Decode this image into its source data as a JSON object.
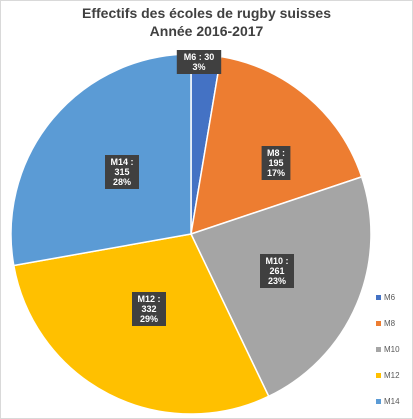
{
  "chart_data": {
    "type": "pie",
    "title": [
      "Effectifs des écoles de rugby suisses",
      "Année 2016-2017"
    ],
    "series_name": "Effectifs",
    "slices": [
      {
        "name": "M6",
        "value": 30,
        "percent": "3%",
        "color": "#4472c4",
        "label": [
          "M6 : 30",
          "3%"
        ]
      },
      {
        "name": "M8",
        "value": 195,
        "percent": "17%",
        "color": "#ed7d31",
        "label": [
          "M8 :",
          "195",
          "17%"
        ]
      },
      {
        "name": "M10",
        "value": 261,
        "percent": "23%",
        "color": "#a5a5a5",
        "label": [
          "M10 :",
          "261",
          "23%"
        ]
      },
      {
        "name": "M12",
        "value": 332,
        "percent": "29%",
        "color": "#ffc000",
        "label": [
          "M12 :",
          "332",
          "29%"
        ]
      },
      {
        "name": "M14",
        "value": 315,
        "percent": "28%",
        "color": "#5b9bd5",
        "label": [
          "M14 :",
          "315",
          "28%"
        ]
      }
    ],
    "start_angle_deg": 0,
    "direction": "clockwise",
    "legend": [
      "M6",
      "M8",
      "M10",
      "M12",
      "M14"
    ],
    "legend_position": "right-bottom",
    "label_style": {
      "background": "#404040",
      "text_color": "#ffffff"
    }
  }
}
